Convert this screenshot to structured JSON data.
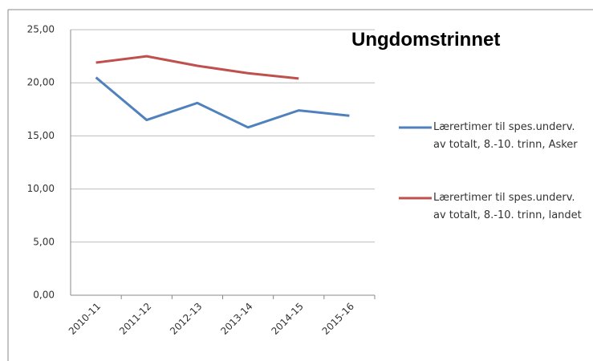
{
  "chart_data": {
    "type": "line",
    "title": "Ungdomstrinnet",
    "categories": [
      "2010-11",
      "2011-12",
      "2012-13",
      "2013-14",
      "2014-15",
      "2015-16"
    ],
    "series": [
      {
        "name": "Lærertimer til spes.underv. av totalt, 8.-10. trinn, Asker",
        "color": "#4f81bd",
        "values": [
          20.5,
          16.5,
          18.1,
          15.8,
          17.4,
          16.9
        ]
      },
      {
        "name": "Lærertimer til spes.underv. av totalt, 8.-10. trinn, landet",
        "color": "#c0504d",
        "values": [
          21.9,
          22.5,
          21.6,
          20.9,
          20.4,
          null
        ]
      }
    ],
    "ylim": [
      0,
      25
    ],
    "yticks": [
      {
        "value": 0,
        "label": "0,00"
      },
      {
        "value": 5,
        "label": "5,00"
      },
      {
        "value": 10,
        "label": "10,00"
      },
      {
        "value": 15,
        "label": "15,00"
      },
      {
        "value": 20,
        "label": "20,00"
      },
      {
        "value": 25,
        "label": "25,00"
      }
    ],
    "grid": true
  }
}
